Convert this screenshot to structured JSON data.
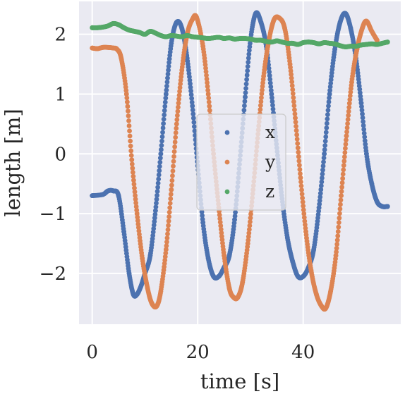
{
  "chart_data": {
    "type": "scatter",
    "title": "",
    "xlabel": "time [s]",
    "ylabel": "length [m]",
    "xlim": [
      -2.5,
      58.5
    ],
    "ylim": [
      -2.85,
      2.55
    ],
    "xticks": [
      0,
      20,
      40
    ],
    "xtick_labels": [
      "0",
      "20",
      "40"
    ],
    "yticks": [
      -2,
      -1,
      0,
      1,
      2
    ],
    "ytick_labels": [
      "−2",
      "−1",
      "0",
      "1",
      "2"
    ],
    "grid": true,
    "legend_position": "center",
    "series": [
      {
        "name": "x",
        "color": "#4c72b0",
        "x": [
          0,
          2,
          3,
          4,
          5,
          6,
          7,
          7.8,
          8.5,
          9.3,
          10,
          11,
          12,
          13,
          14,
          15,
          16,
          17,
          18,
          19,
          20,
          21,
          22,
          23,
          24,
          25,
          26,
          27,
          28,
          29,
          30,
          31,
          32,
          33,
          34,
          35,
          36,
          37,
          38,
          39,
          40,
          41,
          42,
          43,
          44,
          45,
          46,
          47,
          48,
          49,
          50,
          51,
          52,
          53,
          54,
          55,
          56
        ],
        "y": [
          -0.7,
          -0.68,
          -0.62,
          -0.62,
          -0.7,
          -1.3,
          -2.0,
          -2.35,
          -2.35,
          -2.2,
          -2.0,
          -1.7,
          -0.95,
          0.0,
          1.0,
          1.85,
          2.2,
          2.1,
          1.6,
          0.8,
          -0.2,
          -1.15,
          -1.75,
          -2.05,
          -2.05,
          -1.9,
          -1.7,
          -1.1,
          -0.1,
          0.95,
          1.9,
          2.35,
          2.2,
          1.8,
          1.0,
          0.1,
          -0.75,
          -1.4,
          -1.8,
          -2.05,
          -2.05,
          -1.9,
          -1.6,
          -0.9,
          0.0,
          1.0,
          1.75,
          2.2,
          2.35,
          2.1,
          1.6,
          0.85,
          0.0,
          -0.5,
          -0.8,
          -0.88,
          -0.88
        ]
      },
      {
        "name": "y",
        "color": "#dd8452",
        "x": [
          0,
          1,
          2,
          3,
          4,
          4.7,
          5.5,
          6.5,
          7.5,
          8.5,
          9.5,
          10.5,
          11.3,
          12.2,
          13,
          14,
          15,
          16,
          17,
          18,
          19,
          19.8,
          21,
          22,
          23,
          24,
          25,
          26,
          26.8,
          27.6,
          28.5,
          29.5,
          30.5,
          31.5,
          32.5,
          33.5,
          34.5,
          35.5,
          36.5,
          37.5,
          38.5,
          39.5,
          40.5,
          41.5,
          42.5,
          43.5,
          44.3,
          45.2,
          46.2,
          47.2,
          48.2,
          49.2,
          50.2,
          51.2,
          52,
          53,
          54
        ],
        "y": [
          1.77,
          1.76,
          1.78,
          1.78,
          1.77,
          1.75,
          1.6,
          1.0,
          -0.1,
          -1.0,
          -1.75,
          -2.25,
          -2.5,
          -2.55,
          -2.3,
          -1.6,
          -0.6,
          0.5,
          1.4,
          2.0,
          2.25,
          2.28,
          1.8,
          1.0,
          0.0,
          -0.9,
          -1.7,
          -2.25,
          -2.4,
          -2.4,
          -2.15,
          -1.5,
          -0.6,
          0.4,
          1.3,
          1.9,
          2.25,
          2.27,
          2.1,
          1.5,
          0.6,
          -0.4,
          -1.3,
          -1.95,
          -2.35,
          -2.55,
          -2.58,
          -2.3,
          -1.7,
          -0.7,
          0.3,
          1.2,
          1.75,
          2.1,
          2.22,
          2.05,
          1.9
        ]
      },
      {
        "name": "z",
        "color": "#55a868",
        "x": [
          0,
          1,
          2,
          3,
          4,
          5,
          6,
          7,
          8,
          9,
          10,
          11,
          12,
          13,
          14,
          15,
          16,
          17,
          18,
          19,
          20,
          21,
          22,
          23,
          24,
          25,
          26,
          27,
          28,
          29,
          30,
          31,
          32,
          33,
          34,
          35,
          36,
          37,
          38,
          39,
          40,
          41,
          42,
          43,
          44,
          45,
          46,
          47,
          48,
          49,
          50,
          51,
          52,
          53,
          54,
          55,
          56
        ],
        "y": [
          2.11,
          2.11,
          2.12,
          2.14,
          2.18,
          2.16,
          2.11,
          2.07,
          2.05,
          2.03,
          2.0,
          2.05,
          2.02,
          1.98,
          1.96,
          1.98,
          1.97,
          1.96,
          1.98,
          1.96,
          1.95,
          1.94,
          1.93,
          1.94,
          1.95,
          1.93,
          1.94,
          1.92,
          1.93,
          1.93,
          1.92,
          1.9,
          1.9,
          1.88,
          1.87,
          1.89,
          1.87,
          1.85,
          1.85,
          1.83,
          1.86,
          1.87,
          1.86,
          1.84,
          1.86,
          1.85,
          1.84,
          1.81,
          1.79,
          1.8,
          1.8,
          1.82,
          1.83,
          1.84,
          1.83,
          1.85,
          1.87
        ]
      }
    ]
  }
}
